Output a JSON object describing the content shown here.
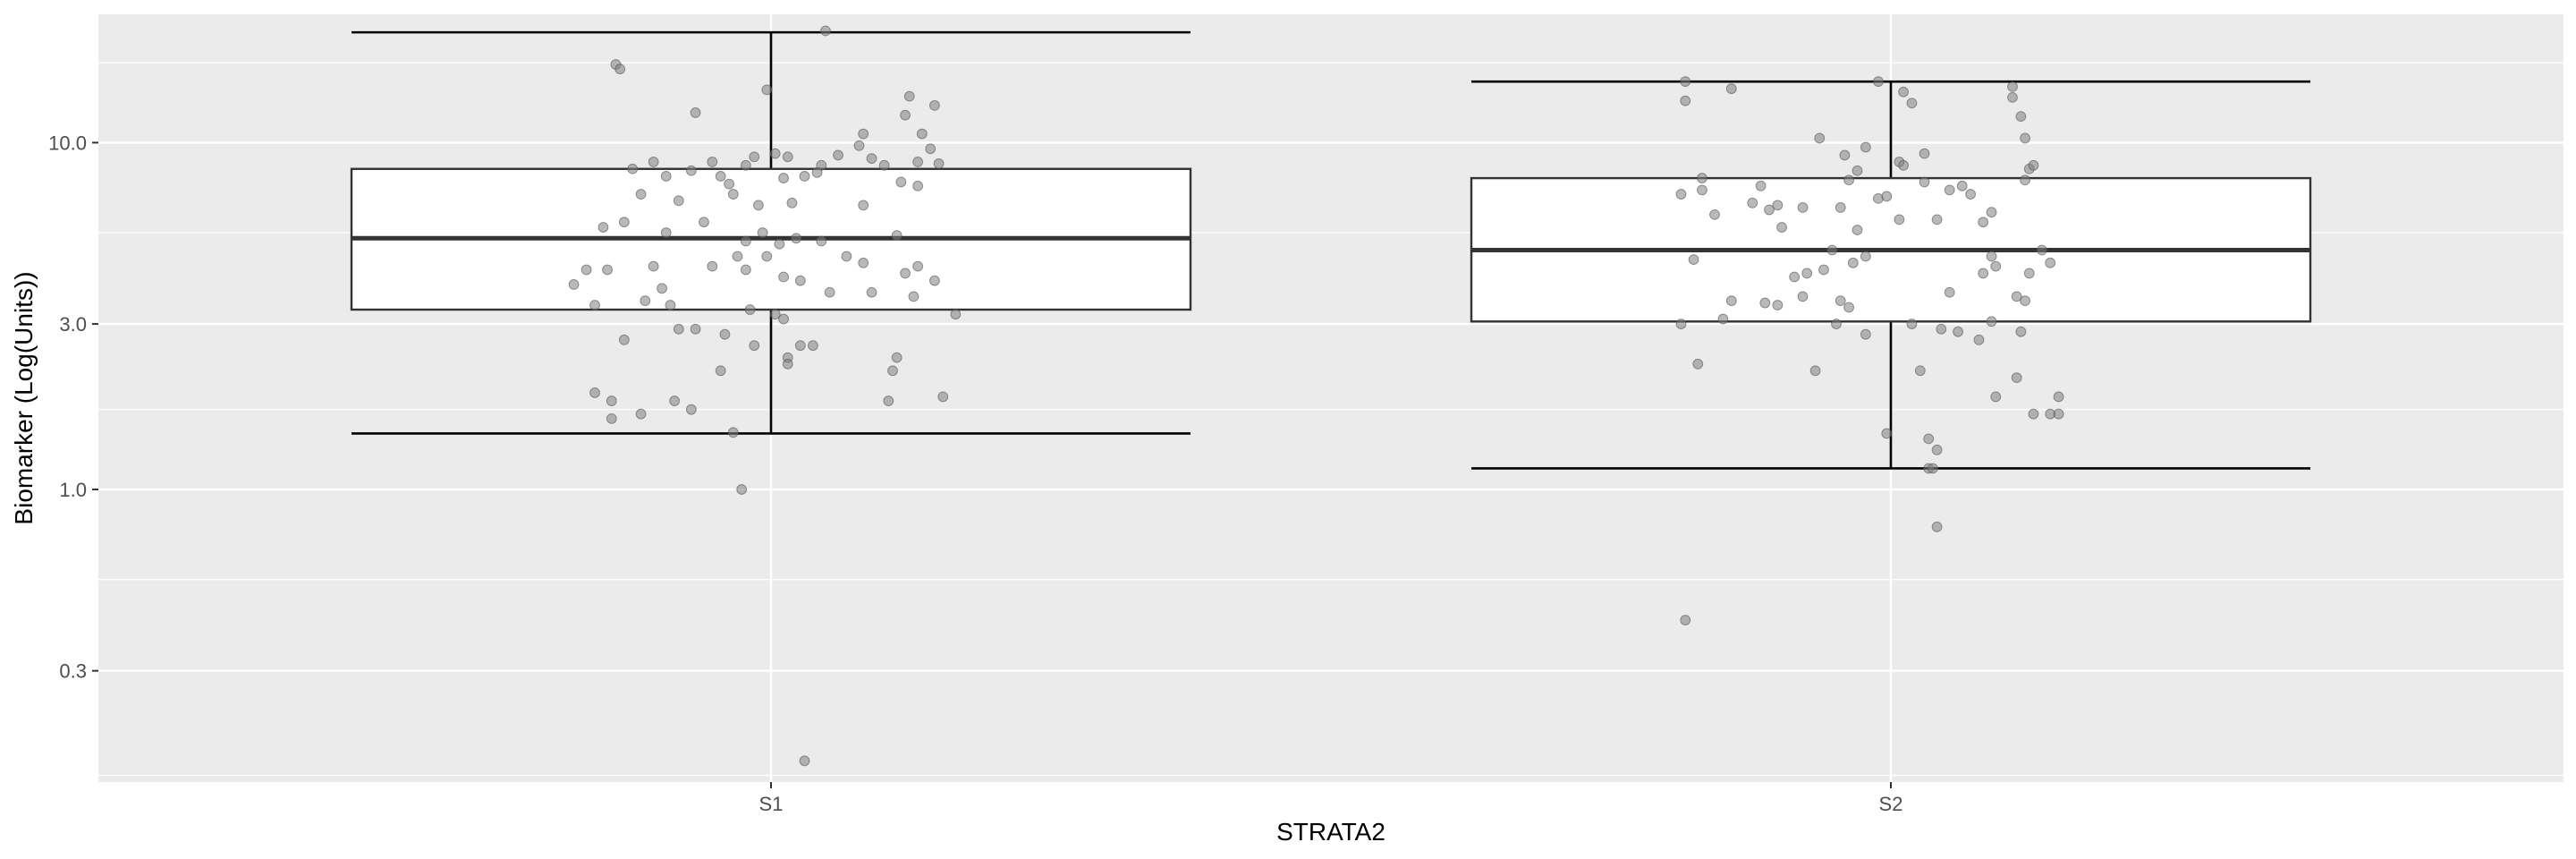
{
  "chart_data": {
    "type": "boxplot",
    "xlabel": "STRATA2",
    "ylabel": "Biomarker (Log(Units))",
    "y_scale": "log10",
    "ylim": [
      0.15,
      30
    ],
    "y_ticks": [
      {
        "value": 0.3,
        "label": "0.3"
      },
      {
        "value": 1.0,
        "label": "1.0"
      },
      {
        "value": 3.0,
        "label": "3.0"
      },
      {
        "value": 10.0,
        "label": "10.0"
      }
    ],
    "y_minor_ticks": [
      0.15,
      0.55,
      1.7,
      5.5,
      17
    ],
    "categories": [
      "S1",
      "S2"
    ],
    "boxes": [
      {
        "category": "S1",
        "whisker_low": 1.45,
        "q1": 3.3,
        "median": 5.3,
        "q3": 8.4,
        "whisker_high": 20.8
      },
      {
        "category": "S2",
        "whisker_low": 1.15,
        "q1": 3.05,
        "median": 4.9,
        "q3": 7.9,
        "whisker_high": 15.0
      }
    ],
    "points": [
      {
        "category": "S1",
        "jitter": -0.37,
        "y": 16.8
      },
      {
        "category": "S1",
        "jitter": -0.36,
        "y": 16.3
      },
      {
        "category": "S1",
        "jitter": -0.18,
        "y": 12.2
      },
      {
        "category": "S1",
        "jitter": -0.01,
        "y": 14.2
      },
      {
        "category": "S1",
        "jitter": 0.13,
        "y": 21.0
      },
      {
        "category": "S1",
        "jitter": 0.33,
        "y": 13.6
      },
      {
        "category": "S1",
        "jitter": 0.32,
        "y": 12.0
      },
      {
        "category": "S1",
        "jitter": 0.22,
        "y": 10.6
      },
      {
        "category": "S1",
        "jitter": 0.36,
        "y": 10.6
      },
      {
        "category": "S1",
        "jitter": 0.39,
        "y": 12.8
      },
      {
        "category": "S1",
        "jitter": -0.33,
        "y": 8.4
      },
      {
        "category": "S1",
        "jitter": -0.28,
        "y": 8.8
      },
      {
        "category": "S1",
        "jitter": -0.25,
        "y": 8.0
      },
      {
        "category": "S1",
        "jitter": -0.19,
        "y": 8.3
      },
      {
        "category": "S1",
        "jitter": -0.14,
        "y": 8.8
      },
      {
        "category": "S1",
        "jitter": -0.12,
        "y": 8.0
      },
      {
        "category": "S1",
        "jitter": -0.1,
        "y": 7.6
      },
      {
        "category": "S1",
        "jitter": -0.06,
        "y": 8.6
      },
      {
        "category": "S1",
        "jitter": -0.04,
        "y": 9.1
      },
      {
        "category": "S1",
        "jitter": 0.01,
        "y": 9.3
      },
      {
        "category": "S1",
        "jitter": 0.04,
        "y": 9.1
      },
      {
        "category": "S1",
        "jitter": 0.08,
        "y": 8.0
      },
      {
        "category": "S1",
        "jitter": 0.12,
        "y": 8.6
      },
      {
        "category": "S1",
        "jitter": 0.16,
        "y": 9.2
      },
      {
        "category": "S1",
        "jitter": 0.21,
        "y": 9.8
      },
      {
        "category": "S1",
        "jitter": 0.24,
        "y": 9.0
      },
      {
        "category": "S1",
        "jitter": 0.27,
        "y": 8.6
      },
      {
        "category": "S1",
        "jitter": 0.31,
        "y": 7.7
      },
      {
        "category": "S1",
        "jitter": 0.35,
        "y": 8.8
      },
      {
        "category": "S1",
        "jitter": 0.38,
        "y": 9.6
      },
      {
        "category": "S1",
        "jitter": 0.4,
        "y": 8.7
      },
      {
        "category": "S1",
        "jitter": 0.11,
        "y": 8.2
      },
      {
        "category": "S1",
        "jitter": 0.03,
        "y": 7.9
      },
      {
        "category": "S1",
        "jitter": -0.31,
        "y": 7.1
      },
      {
        "category": "S1",
        "jitter": -0.22,
        "y": 6.8
      },
      {
        "category": "S1",
        "jitter": -0.09,
        "y": 7.1
      },
      {
        "category": "S1",
        "jitter": -0.03,
        "y": 6.6
      },
      {
        "category": "S1",
        "jitter": 0.05,
        "y": 6.7
      },
      {
        "category": "S1",
        "jitter": 0.22,
        "y": 6.6
      },
      {
        "category": "S1",
        "jitter": 0.35,
        "y": 7.5
      },
      {
        "category": "S1",
        "jitter": -0.4,
        "y": 5.7
      },
      {
        "category": "S1",
        "jitter": -0.35,
        "y": 5.9
      },
      {
        "category": "S1",
        "jitter": -0.25,
        "y": 5.5
      },
      {
        "category": "S1",
        "jitter": -0.16,
        "y": 5.9
      },
      {
        "category": "S1",
        "jitter": -0.06,
        "y": 5.2
      },
      {
        "category": "S1",
        "jitter": -0.02,
        "y": 5.5
      },
      {
        "category": "S1",
        "jitter": 0.02,
        "y": 5.1
      },
      {
        "category": "S1",
        "jitter": 0.06,
        "y": 5.3
      },
      {
        "category": "S1",
        "jitter": 0.12,
        "y": 5.2
      },
      {
        "category": "S1",
        "jitter": 0.18,
        "y": 4.7
      },
      {
        "category": "S1",
        "jitter": 0.3,
        "y": 5.4
      },
      {
        "category": "S1",
        "jitter": -0.44,
        "y": 4.3
      },
      {
        "category": "S1",
        "jitter": -0.39,
        "y": 4.3
      },
      {
        "category": "S1",
        "jitter": -0.28,
        "y": 4.4
      },
      {
        "category": "S1",
        "jitter": -0.14,
        "y": 4.4
      },
      {
        "category": "S1",
        "jitter": -0.08,
        "y": 4.7
      },
      {
        "category": "S1",
        "jitter": -0.06,
        "y": 4.3
      },
      {
        "category": "S1",
        "jitter": -0.01,
        "y": 4.7
      },
      {
        "category": "S1",
        "jitter": 0.03,
        "y": 4.1
      },
      {
        "category": "S1",
        "jitter": 0.07,
        "y": 4.0
      },
      {
        "category": "S1",
        "jitter": 0.22,
        "y": 4.5
      },
      {
        "category": "S1",
        "jitter": 0.32,
        "y": 4.2
      },
      {
        "category": "S1",
        "jitter": 0.35,
        "y": 4.4
      },
      {
        "category": "S1",
        "jitter": 0.39,
        "y": 4.0
      },
      {
        "category": "S1",
        "jitter": -0.47,
        "y": 3.9
      },
      {
        "category": "S1",
        "jitter": -0.42,
        "y": 3.4
      },
      {
        "category": "S1",
        "jitter": -0.3,
        "y": 3.5
      },
      {
        "category": "S1",
        "jitter": -0.26,
        "y": 3.8
      },
      {
        "category": "S1",
        "jitter": -0.24,
        "y": 3.4
      },
      {
        "category": "S1",
        "jitter": -0.05,
        "y": 3.3
      },
      {
        "category": "S1",
        "jitter": 0.14,
        "y": 3.7
      },
      {
        "category": "S1",
        "jitter": 0.24,
        "y": 3.7
      },
      {
        "category": "S1",
        "jitter": 0.34,
        "y": 3.6
      },
      {
        "category": "S1",
        "jitter": 0.01,
        "y": 3.2
      },
      {
        "category": "S1",
        "jitter": 0.03,
        "y": 3.1
      },
      {
        "category": "S1",
        "jitter": 0.44,
        "y": 3.2
      },
      {
        "category": "S1",
        "jitter": -0.35,
        "y": 2.7
      },
      {
        "category": "S1",
        "jitter": -0.22,
        "y": 2.9
      },
      {
        "category": "S1",
        "jitter": -0.18,
        "y": 2.9
      },
      {
        "category": "S1",
        "jitter": -0.11,
        "y": 2.8
      },
      {
        "category": "S1",
        "jitter": -0.04,
        "y": 2.6
      },
      {
        "category": "S1",
        "jitter": 0.07,
        "y": 2.6
      },
      {
        "category": "S1",
        "jitter": 0.1,
        "y": 2.6
      },
      {
        "category": "S1",
        "jitter": 0.04,
        "y": 2.4
      },
      {
        "category": "S1",
        "jitter": 0.04,
        "y": 2.3
      },
      {
        "category": "S1",
        "jitter": 0.3,
        "y": 2.4
      },
      {
        "category": "S1",
        "jitter": 0.29,
        "y": 2.2
      },
      {
        "category": "S1",
        "jitter": -0.12,
        "y": 2.2
      },
      {
        "category": "S1",
        "jitter": -0.42,
        "y": 1.9
      },
      {
        "category": "S1",
        "jitter": -0.38,
        "y": 1.8
      },
      {
        "category": "S1",
        "jitter": -0.23,
        "y": 1.8
      },
      {
        "category": "S1",
        "jitter": -0.19,
        "y": 1.7
      },
      {
        "category": "S1",
        "jitter": -0.38,
        "y": 1.6
      },
      {
        "category": "S1",
        "jitter": -0.31,
        "y": 1.65
      },
      {
        "category": "S1",
        "jitter": 0.28,
        "y": 1.8
      },
      {
        "category": "S1",
        "jitter": 0.41,
        "y": 1.85
      },
      {
        "category": "S1",
        "jitter": -0.09,
        "y": 1.46
      },
      {
        "category": "S1",
        "jitter": -0.07,
        "y": 1.0
      },
      {
        "category": "S1",
        "jitter": 0.08,
        "y": 0.165
      },
      {
        "category": "S2",
        "jitter": -0.49,
        "y": 15.0
      },
      {
        "category": "S2",
        "jitter": -0.49,
        "y": 13.2
      },
      {
        "category": "S2",
        "jitter": -0.38,
        "y": 14.3
      },
      {
        "category": "S2",
        "jitter": -0.03,
        "y": 15.0
      },
      {
        "category": "S2",
        "jitter": 0.05,
        "y": 13.0
      },
      {
        "category": "S2",
        "jitter": 0.03,
        "y": 14.0
      },
      {
        "category": "S2",
        "jitter": 0.29,
        "y": 14.5
      },
      {
        "category": "S2",
        "jitter": 0.29,
        "y": 13.5
      },
      {
        "category": "S2",
        "jitter": 0.31,
        "y": 11.9
      },
      {
        "category": "S2",
        "jitter": 0.32,
        "y": 10.3
      },
      {
        "category": "S2",
        "jitter": -0.17,
        "y": 10.3
      },
      {
        "category": "S2",
        "jitter": -0.11,
        "y": 9.2
      },
      {
        "category": "S2",
        "jitter": -0.06,
        "y": 9.7
      },
      {
        "category": "S2",
        "jitter": 0.02,
        "y": 8.8
      },
      {
        "category": "S2",
        "jitter": 0.08,
        "y": 9.3
      },
      {
        "category": "S2",
        "jitter": 0.33,
        "y": 8.4
      },
      {
        "category": "S2",
        "jitter": 0.34,
        "y": 8.6
      },
      {
        "category": "S2",
        "jitter": -0.45,
        "y": 7.9
      },
      {
        "category": "S2",
        "jitter": -0.31,
        "y": 7.5
      },
      {
        "category": "S2",
        "jitter": -0.1,
        "y": 7.8
      },
      {
        "category": "S2",
        "jitter": -0.08,
        "y": 8.3
      },
      {
        "category": "S2",
        "jitter": 0.03,
        "y": 8.6
      },
      {
        "category": "S2",
        "jitter": 0.08,
        "y": 7.7
      },
      {
        "category": "S2",
        "jitter": 0.17,
        "y": 7.5
      },
      {
        "category": "S2",
        "jitter": 0.14,
        "y": 7.3
      },
      {
        "category": "S2",
        "jitter": 0.19,
        "y": 7.1
      },
      {
        "category": "S2",
        "jitter": 0.32,
        "y": 7.8
      },
      {
        "category": "S2",
        "jitter": -0.5,
        "y": 7.1
      },
      {
        "category": "S2",
        "jitter": -0.45,
        "y": 7.3
      },
      {
        "category": "S2",
        "jitter": -0.42,
        "y": 6.2
      },
      {
        "category": "S2",
        "jitter": -0.33,
        "y": 6.7
      },
      {
        "category": "S2",
        "jitter": -0.29,
        "y": 6.4
      },
      {
        "category": "S2",
        "jitter": -0.27,
        "y": 6.6
      },
      {
        "category": "S2",
        "jitter": -0.21,
        "y": 6.5
      },
      {
        "category": "S2",
        "jitter": -0.12,
        "y": 6.5
      },
      {
        "category": "S2",
        "jitter": -0.03,
        "y": 6.9
      },
      {
        "category": "S2",
        "jitter": -0.01,
        "y": 7.0
      },
      {
        "category": "S2",
        "jitter": 0.02,
        "y": 6.0
      },
      {
        "category": "S2",
        "jitter": 0.11,
        "y": 6.0
      },
      {
        "category": "S2",
        "jitter": 0.22,
        "y": 5.9
      },
      {
        "category": "S2",
        "jitter": 0.24,
        "y": 6.3
      },
      {
        "category": "S2",
        "jitter": -0.26,
        "y": 5.7
      },
      {
        "category": "S2",
        "jitter": -0.14,
        "y": 4.9
      },
      {
        "category": "S2",
        "jitter": -0.08,
        "y": 5.6
      },
      {
        "category": "S2",
        "jitter": -0.06,
        "y": 4.7
      },
      {
        "category": "S2",
        "jitter": -0.09,
        "y": 4.5
      },
      {
        "category": "S2",
        "jitter": -0.47,
        "y": 4.6
      },
      {
        "category": "S2",
        "jitter": -0.2,
        "y": 4.2
      },
      {
        "category": "S2",
        "jitter": -0.16,
        "y": 4.3
      },
      {
        "category": "S2",
        "jitter": -0.23,
        "y": 4.1
      },
      {
        "category": "S2",
        "jitter": -0.38,
        "y": 3.5
      },
      {
        "category": "S2",
        "jitter": -0.3,
        "y": 3.45
      },
      {
        "category": "S2",
        "jitter": -0.27,
        "y": 3.4
      },
      {
        "category": "S2",
        "jitter": -0.21,
        "y": 3.6
      },
      {
        "category": "S2",
        "jitter": -0.12,
        "y": 3.5
      },
      {
        "category": "S2",
        "jitter": -0.1,
        "y": 3.35
      },
      {
        "category": "S2",
        "jitter": 0.14,
        "y": 3.7
      },
      {
        "category": "S2",
        "jitter": 0.22,
        "y": 4.2
      },
      {
        "category": "S2",
        "jitter": 0.24,
        "y": 4.7
      },
      {
        "category": "S2",
        "jitter": 0.25,
        "y": 4.4
      },
      {
        "category": "S2",
        "jitter": 0.33,
        "y": 4.2
      },
      {
        "category": "S2",
        "jitter": 0.36,
        "y": 4.9
      },
      {
        "category": "S2",
        "jitter": 0.38,
        "y": 4.5
      },
      {
        "category": "S2",
        "jitter": -0.5,
        "y": 3.0
      },
      {
        "category": "S2",
        "jitter": -0.4,
        "y": 3.1
      },
      {
        "category": "S2",
        "jitter": -0.13,
        "y": 3.0
      },
      {
        "category": "S2",
        "jitter": 0.05,
        "y": 3.0
      },
      {
        "category": "S2",
        "jitter": 0.12,
        "y": 2.9
      },
      {
        "category": "S2",
        "jitter": 0.16,
        "y": 2.85
      },
      {
        "category": "S2",
        "jitter": 0.24,
        "y": 3.05
      },
      {
        "category": "S2",
        "jitter": 0.3,
        "y": 3.6
      },
      {
        "category": "S2",
        "jitter": 0.32,
        "y": 3.5
      },
      {
        "category": "S2",
        "jitter": -0.06,
        "y": 2.8
      },
      {
        "category": "S2",
        "jitter": 0.21,
        "y": 2.7
      },
      {
        "category": "S2",
        "jitter": 0.31,
        "y": 2.85
      },
      {
        "category": "S2",
        "jitter": -0.46,
        "y": 2.3
      },
      {
        "category": "S2",
        "jitter": -0.18,
        "y": 2.2
      },
      {
        "category": "S2",
        "jitter": 0.07,
        "y": 2.2
      },
      {
        "category": "S2",
        "jitter": 0.25,
        "y": 1.85
      },
      {
        "category": "S2",
        "jitter": 0.3,
        "y": 2.1
      },
      {
        "category": "S2",
        "jitter": 0.34,
        "y": 1.65
      },
      {
        "category": "S2",
        "jitter": 0.38,
        "y": 1.65
      },
      {
        "category": "S2",
        "jitter": 0.4,
        "y": 1.65
      },
      {
        "category": "S2",
        "jitter": 0.4,
        "y": 1.85
      },
      {
        "category": "S2",
        "jitter": -0.01,
        "y": 1.45
      },
      {
        "category": "S2",
        "jitter": 0.09,
        "y": 1.4
      },
      {
        "category": "S2",
        "jitter": 0.09,
        "y": 1.15
      },
      {
        "category": "S2",
        "jitter": 0.1,
        "y": 1.15
      },
      {
        "category": "S2",
        "jitter": 0.11,
        "y": 1.3
      },
      {
        "category": "S2",
        "jitter": 0.11,
        "y": 0.78
      },
      {
        "category": "S2",
        "jitter": -0.49,
        "y": 0.42
      }
    ],
    "colors": {
      "panel_background": "#ebebeb",
      "grid_major": "#ffffff",
      "grid_minor": "#f5f5f5",
      "box_fill": "#ffffff",
      "box_line": "#333333",
      "whisker": "#000000",
      "point": "#7f7f7f"
    },
    "grid": true,
    "legend": "none"
  }
}
